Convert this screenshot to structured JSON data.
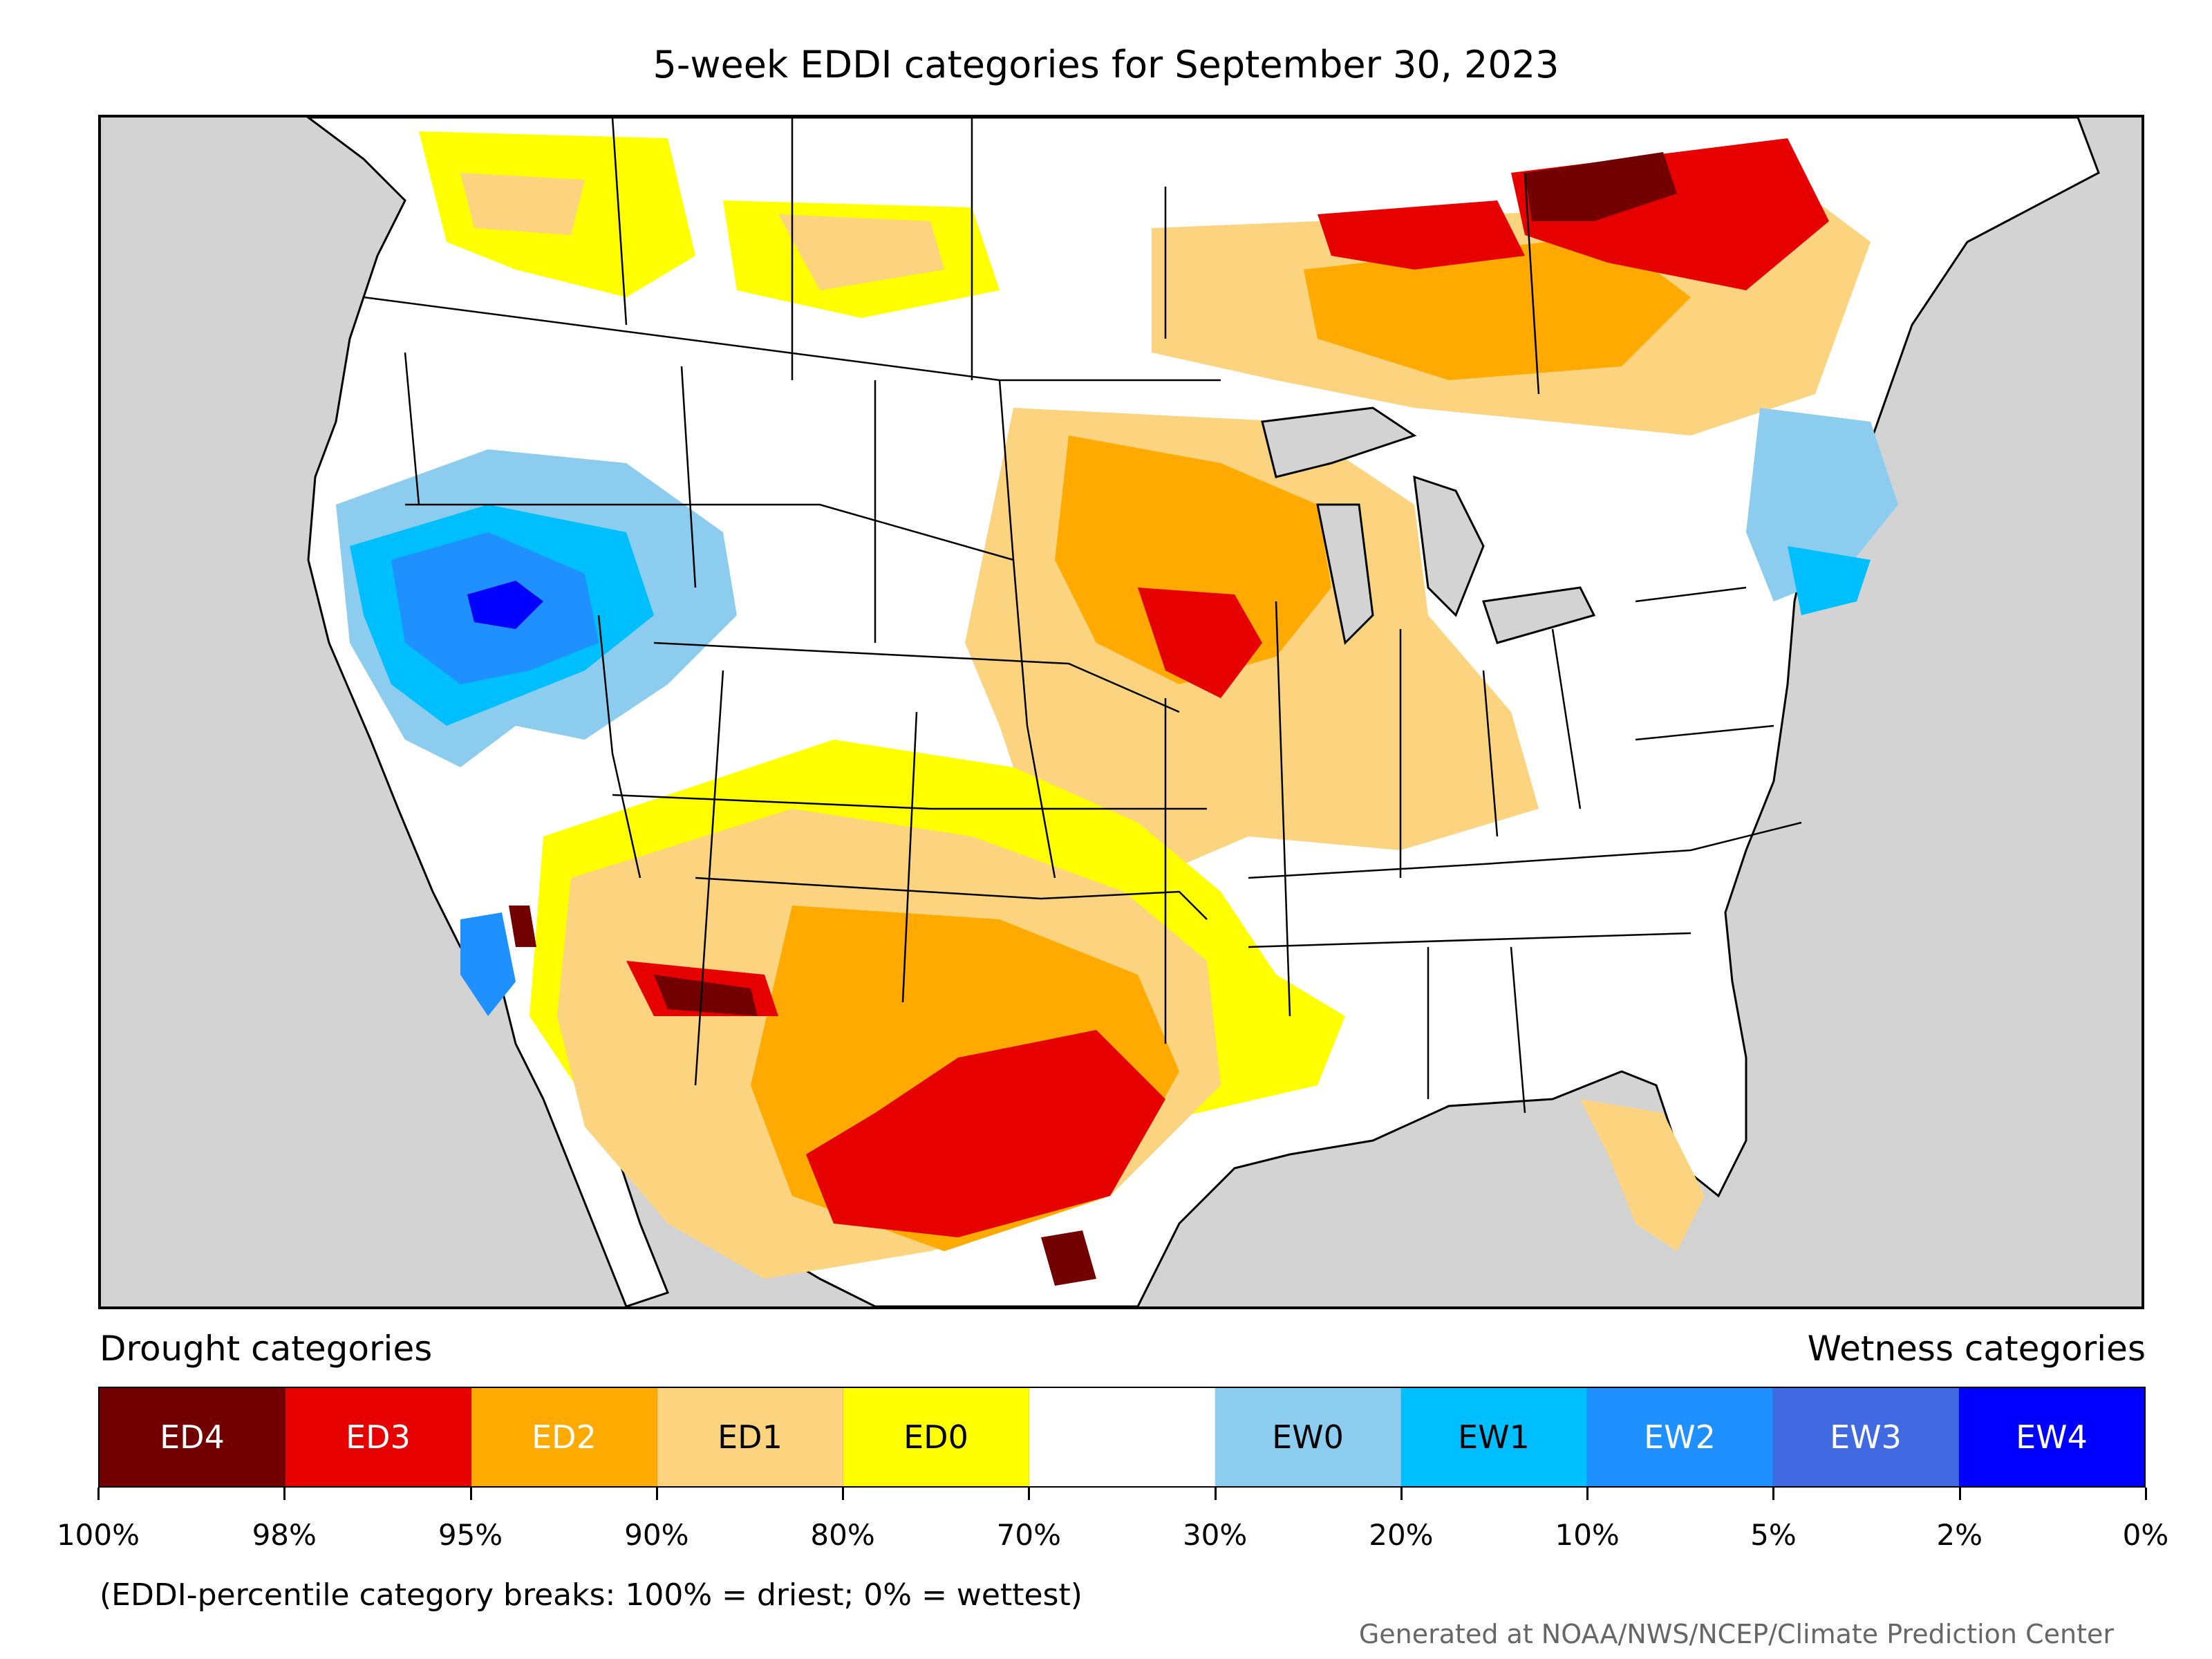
{
  "title": "5-week EDDI categories for September 30, 2023",
  "map": {
    "region": "Contiguous United States and surrounding areas",
    "colors": {
      "ocean_background": "#d3d3d3",
      "land_default": "#ffffff",
      "borders": "#000000"
    },
    "legend": {
      "drought_caption": "Drought categories",
      "wetness_caption": "Wetness categories",
      "categories": [
        {
          "label": "ED4",
          "color": "#730000",
          "text_color": "#ffffff"
        },
        {
          "label": "ED3",
          "color": "#e60000",
          "text_color": "#ffffff"
        },
        {
          "label": "ED2",
          "color": "#ffaa00",
          "text_color": "#ffffff"
        },
        {
          "label": "ED1",
          "color": "#fcd37f",
          "text_color": "#000000"
        },
        {
          "label": "ED0",
          "color": "#ffff00",
          "text_color": "#000000"
        },
        {
          "label": "",
          "color": "#ffffff",
          "text_color": "#000000"
        },
        {
          "label": "EW0",
          "color": "#8ccdef",
          "text_color": "#000000"
        },
        {
          "label": "EW1",
          "color": "#00bfff",
          "text_color": "#000000"
        },
        {
          "label": "EW2",
          "color": "#1e90ff",
          "text_color": "#ffffff"
        },
        {
          "label": "EW3",
          "color": "#4169e1",
          "text_color": "#ffffff"
        },
        {
          "label": "EW4",
          "color": "#0000ff",
          "text_color": "#ffffff"
        }
      ],
      "ticks": [
        "100%",
        "98%",
        "95%",
        "90%",
        "80%",
        "70%",
        "30%",
        "20%",
        "10%",
        "5%",
        "2%",
        "0%"
      ]
    },
    "notable_areas": [
      {
        "area": "Texas / southern Plains / Desert Southwest",
        "category": "ED2-ED4"
      },
      {
        "area": "Upper Midwest (Iowa, Illinois)",
        "category": "ED1-ED3"
      },
      {
        "area": "Ontario / Quebec (Canada)",
        "category": "ED2-ED4"
      },
      {
        "area": "Great Basin (Oregon, Nevada, Idaho)",
        "category": "EW0-EW4"
      },
      {
        "area": "New England / Mid-Atlantic coast",
        "category": "EW0-EW2"
      },
      {
        "area": "Southeast",
        "category": "near normal"
      }
    ]
  },
  "footnote": "(EDDI-percentile category breaks: 100% = driest; 0% = wettest)",
  "credit": "Generated at NOAA/NWS/NCEP/Climate Prediction Center"
}
